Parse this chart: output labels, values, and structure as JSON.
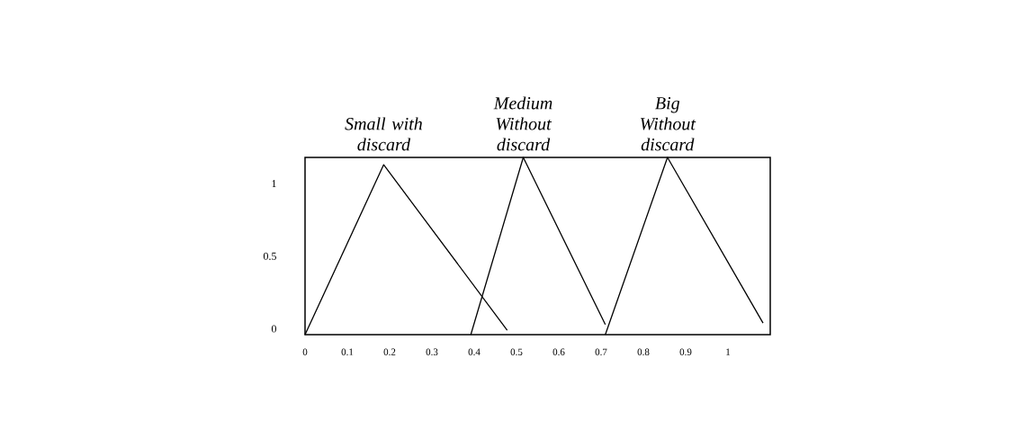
{
  "chart_data": {
    "type": "line",
    "xlim": [
      0,
      1.1
    ],
    "ylim": [
      -0.04,
      1.18
    ],
    "xticks": [
      0,
      0.1,
      0.2,
      0.3,
      0.4,
      0.5,
      0.6,
      0.7,
      0.8,
      0.9,
      1
    ],
    "yticks": [
      0,
      0.5,
      1
    ],
    "grid": false,
    "marker": "none",
    "line_style": "solid",
    "series": [
      {
        "name": "Small with discard",
        "color": "#000000",
        "x": [
          0,
          0.186,
          0.478
        ],
        "values": [
          -0.04,
          1.13,
          -0.01
        ]
      },
      {
        "name": "Medium Without discard",
        "color": "#000000",
        "x": [
          0.392,
          0.516,
          0.71
        ],
        "values": [
          -0.04,
          1.18,
          0.03
        ]
      },
      {
        "name": "Big Without discard",
        "color": "#000000",
        "x": [
          0.71,
          0.857,
          1.083
        ],
        "values": [
          -0.04,
          1.18,
          0.04
        ]
      }
    ]
  }
}
